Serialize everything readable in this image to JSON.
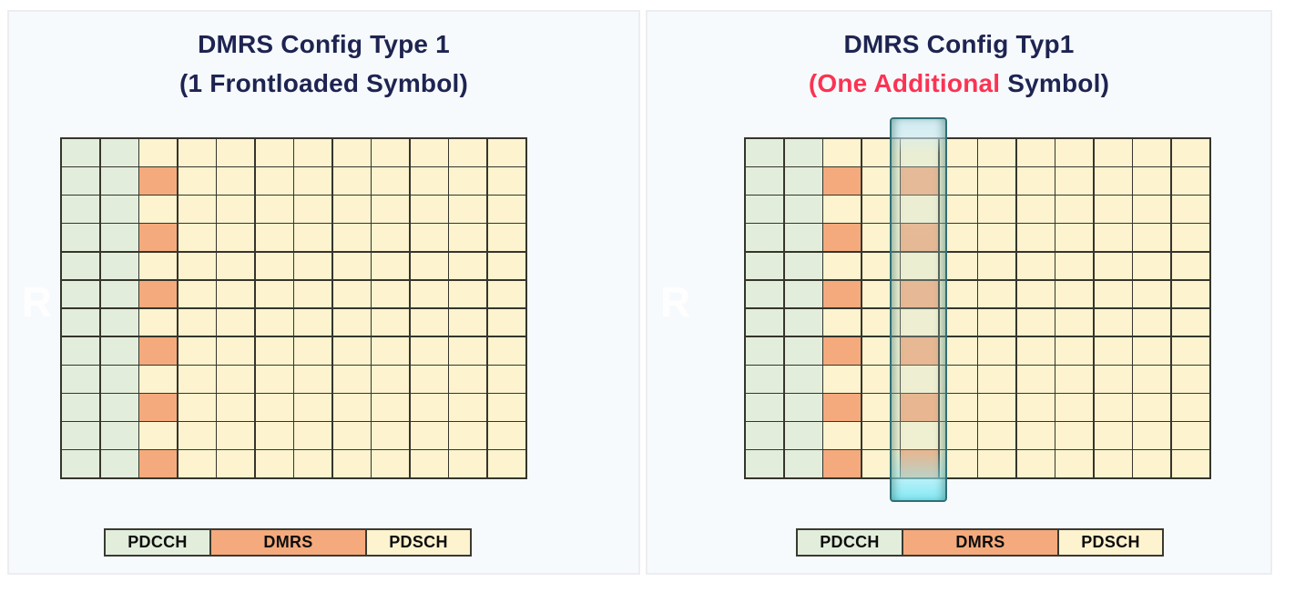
{
  "colors": {
    "page_bg": "#ffffff",
    "panel_bg": "#f7fafd",
    "panel_border": "#ededf0",
    "title_navy": "#1e2451",
    "title_red": "#fb3353",
    "grid_line": "#35352c",
    "pdcch": "#e2eedb",
    "dmrs": "#f4aa7c",
    "pdsch": "#fdf3cf",
    "legend_border": "#3a3a32",
    "legend_text": "#0d0d0d",
    "watermark": "#ffffff",
    "highlight_border": "#2f6f76"
  },
  "panels": [
    {
      "title_line1": "DMRS Config Type 1",
      "title_line2_red": "",
      "title_line2_dark": "(1 Frontloaded Symbol)",
      "watermark": "R",
      "grid": {
        "rows": 12,
        "columns": 12,
        "pdcch_columns": [
          0,
          1
        ],
        "dmrs_columns": [
          2
        ],
        "dmrs_rows": [
          1,
          3,
          5,
          7,
          9,
          11
        ],
        "highlight_column": null
      },
      "legend": [
        {
          "label": "PDCCH",
          "type": "pdcch"
        },
        {
          "label": "DMRS",
          "type": "dmrs"
        },
        {
          "label": "PDSCH",
          "type": "pdsch"
        }
      ]
    },
    {
      "title_line1": "DMRS Config Typ1",
      "title_line2_red": "(One Additional",
      "title_line2_dark": " Symbol)",
      "watermark": "R",
      "grid": {
        "rows": 12,
        "columns": 12,
        "pdcch_columns": [
          0,
          1
        ],
        "dmrs_columns": [
          2,
          4
        ],
        "dmrs_rows": [
          1,
          3,
          5,
          7,
          9,
          11
        ],
        "highlight_column": 4
      },
      "legend": [
        {
          "label": "PDCCH",
          "type": "pdcch"
        },
        {
          "label": "DMRS",
          "type": "dmrs"
        },
        {
          "label": "PDSCH",
          "type": "pdsch"
        }
      ]
    }
  ]
}
